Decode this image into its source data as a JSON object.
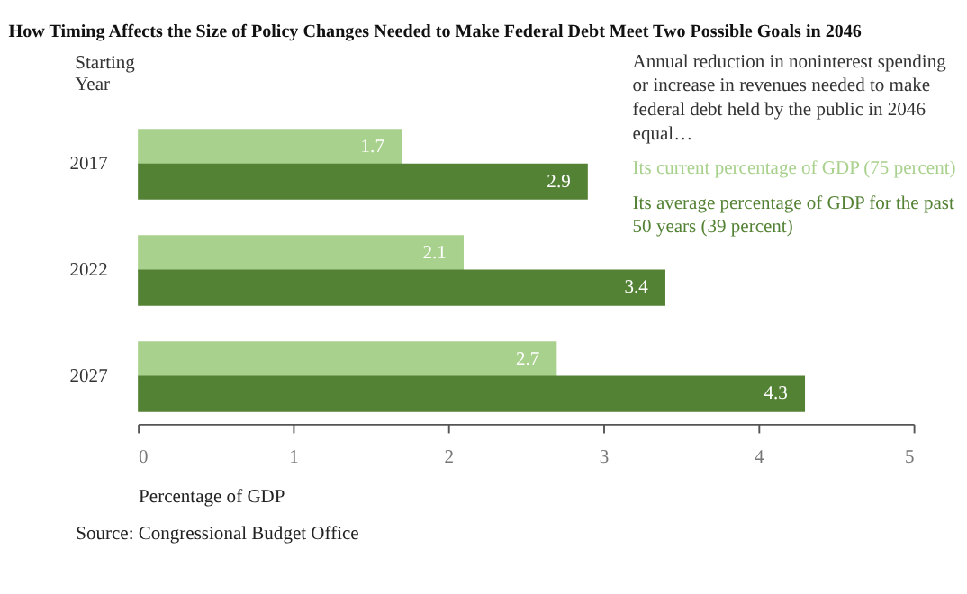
{
  "chart_data": {
    "type": "bar",
    "orientation": "horizontal",
    "title": "How Timing Affects the Size of Policy Changes Needed to Make Federal Debt Meet Two Possible Goals in 2046",
    "ylabel": "Starting Year",
    "xlabel": "Percentage of GDP",
    "legend_title": "Annual reduction in noninterest spending or increase in revenues needed to make federal debt held by the public in 2046 equal…",
    "categories": [
      "2017",
      "2022",
      "2027"
    ],
    "series": [
      {
        "name": "Its current percentage of GDP (75 percent)",
        "color": "#a9d18e",
        "values": [
          1.7,
          2.1,
          2.7
        ]
      },
      {
        "name": "Its average percentage of GDP for the past 50 years (39 percent)",
        "color": "#548235",
        "values": [
          2.9,
          3.4,
          4.3
        ]
      }
    ],
    "xlim": [
      0,
      5
    ],
    "xticks": [
      0,
      1,
      2,
      3,
      4,
      5
    ],
    "grid": false,
    "legend": "top right",
    "data_labels": true,
    "annotations": [
      "Source: Congressional Budget Office"
    ]
  }
}
